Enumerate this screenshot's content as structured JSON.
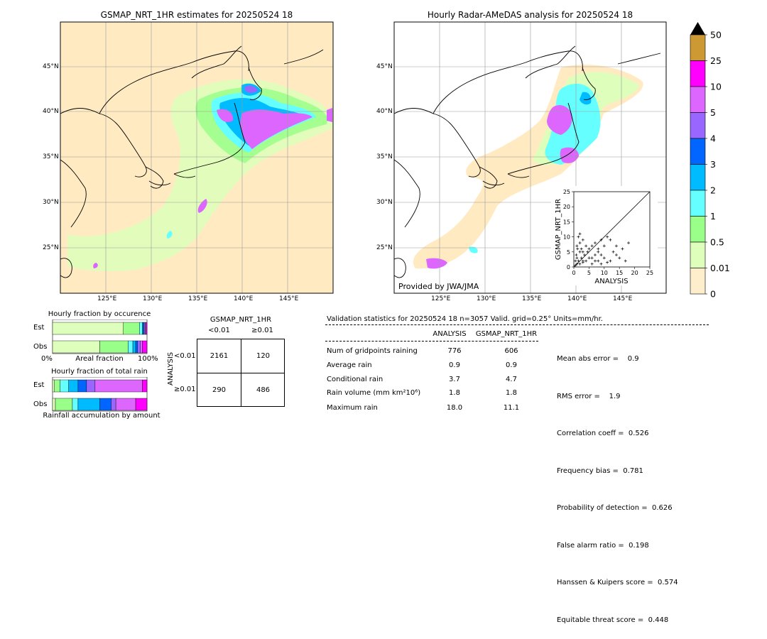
{
  "left_map": {
    "title": "GSMAP_NRT_1HR estimates for 20250524 18",
    "lat_labels": [
      "45°N",
      "40°N",
      "35°N",
      "30°N",
      "25°N"
    ],
    "lon_labels": [
      "125°E",
      "130°E",
      "135°E",
      "140°E",
      "145°E"
    ]
  },
  "right_map": {
    "title": "Hourly Radar-AMeDAS analysis for 20250524 18",
    "lat_labels": [
      "45°N",
      "40°N",
      "35°N",
      "30°N",
      "25°N"
    ],
    "lon_labels": [
      "125°E",
      "130°E",
      "135°E",
      "140°E",
      "145°E"
    ],
    "credit": "Provided by JWA/JMA"
  },
  "colorbar": {
    "labels": [
      "50",
      "25",
      "10",
      "5",
      "4",
      "3",
      "2",
      "1",
      "0.5",
      "0.01",
      "0"
    ],
    "colors": [
      "#cc9933",
      "#ff00ff",
      "#dd66ff",
      "#9966ff",
      "#0066ff",
      "#00bbff",
      "#66ffff",
      "#99ff88",
      "#ddffbb",
      "#ffeecc"
    ]
  },
  "occurrence": {
    "title": "Hourly fraction by occurence",
    "rows": [
      "Est",
      "Obs"
    ],
    "axis_left": "0%",
    "axis_mid": "Areal fraction",
    "axis_right": "100%"
  },
  "total_rain": {
    "title": "Hourly fraction of total rain",
    "rows": [
      "Est",
      "Obs"
    ],
    "footer": "Rainfall accumulation by amount"
  },
  "contingency": {
    "title": "GSMAP_NRT_1HR",
    "col_headers": [
      "<0.01",
      "≥0.01"
    ],
    "row_axis": "ANALYSIS",
    "row_headers": [
      "<0.01",
      "≥0.01"
    ],
    "cells": [
      [
        "2161",
        "120"
      ],
      [
        "290",
        "486"
      ]
    ]
  },
  "validation": {
    "header": "Validation statistics for 20250524 18  n=3057 Valid. grid=0.25° Units=mm/hr.",
    "col_analysis": "ANALYSIS",
    "col_gsmap": "GSMAP_NRT_1HR",
    "rows": [
      {
        "label": "Num of gridpoints raining",
        "analysis": "776",
        "gsmap": "606"
      },
      {
        "label": "Average rain",
        "analysis": "0.9",
        "gsmap": "0.9"
      },
      {
        "label": "Conditional rain",
        "analysis": "3.7",
        "gsmap": "4.7"
      },
      {
        "label": "Rain volume (mm km²10⁶)",
        "analysis": "1.8",
        "gsmap": "1.8"
      },
      {
        "label": "Maximum rain",
        "analysis": "18.0",
        "gsmap": "11.1"
      }
    ],
    "scores": [
      "Mean abs error =    0.9",
      "RMS error =    1.9",
      "Correlation coeff =  0.526",
      "Frequency bias =  0.781",
      "Probability of detection =  0.626",
      "False alarm ratio =  0.198",
      "Hanssen & Kuipers score =  0.574",
      "Equitable threat score =  0.448"
    ]
  },
  "chart_data": [
    {
      "type": "bar",
      "title": "Hourly fraction by occurence",
      "categories": [
        "Est",
        "Obs"
      ],
      "series": [
        {
          "values": [
            0.75,
            0.5
          ]
        },
        {
          "values": [
            0.17,
            0.3
          ]
        },
        {
          "values": [
            0.03,
            0.05
          ]
        },
        {
          "values": [
            0.01,
            0.03
          ]
        },
        {
          "values": [
            0.01,
            0.02
          ]
        },
        {
          "values": [
            0.01,
            0.03
          ]
        },
        {
          "values": [
            0.01,
            0.02
          ]
        },
        {
          "values": [
            0.01,
            0.05
          ]
        }
      ],
      "xlabel": "Areal fraction"
    },
    {
      "type": "bar",
      "title": "Hourly fraction of total rain",
      "categories": [
        "Est",
        "Obs"
      ],
      "series": [
        {
          "values": [
            0.02,
            0.03
          ]
        },
        {
          "values": [
            0.06,
            0.18
          ]
        },
        {
          "values": [
            0.09,
            0.06
          ]
        },
        {
          "values": [
            0.1,
            0.23
          ]
        },
        {
          "values": [
            0.09,
            0.12
          ]
        },
        {
          "values": [
            0.09,
            0.05
          ]
        },
        {
          "values": [
            0.5,
            0.21
          ]
        },
        {
          "values": [
            0.05,
            0.12
          ]
        }
      ],
      "xlabel": "Rainfall accumulation by amount"
    },
    {
      "type": "scatter",
      "xlabel": "ANALYSIS",
      "ylabel": "GSMAP_NRT_1HR",
      "xlim": [
        0,
        25
      ],
      "ylim": [
        0,
        25
      ],
      "x_ticks": [
        0,
        5,
        10,
        15,
        20,
        25
      ],
      "y_ticks": [
        0,
        5,
        10,
        15,
        20,
        25
      ],
      "points": [
        [
          0.5,
          0.5
        ],
        [
          1,
          1
        ],
        [
          1.5,
          2
        ],
        [
          2,
          1
        ],
        [
          2.5,
          3
        ],
        [
          3,
          1.5
        ],
        [
          0.8,
          4
        ],
        [
          1.2,
          6
        ],
        [
          2,
          8
        ],
        [
          1.5,
          10
        ],
        [
          3,
          5
        ],
        [
          4,
          2
        ],
        [
          5,
          3
        ],
        [
          6,
          1
        ],
        [
          7,
          4
        ],
        [
          8,
          2
        ],
        [
          9,
          1
        ],
        [
          10,
          3
        ],
        [
          11,
          1.5
        ],
        [
          12,
          2
        ],
        [
          13,
          5
        ],
        [
          14,
          4
        ],
        [
          15,
          3
        ],
        [
          16,
          6
        ],
        [
          17,
          2
        ],
        [
          18,
          8
        ],
        [
          6,
          7
        ],
        [
          8,
          6
        ],
        [
          10,
          7
        ],
        [
          12,
          9
        ],
        [
          3,
          9
        ],
        [
          2,
          11
        ],
        [
          4,
          7
        ],
        [
          5,
          6
        ],
        [
          7,
          8
        ],
        [
          9,
          9
        ],
        [
          11,
          10
        ],
        [
          1,
          3
        ],
        [
          2,
          5
        ],
        [
          3,
          2
        ],
        [
          0.5,
          2
        ],
        [
          1,
          7
        ],
        [
          2.5,
          6
        ],
        [
          3.5,
          4
        ],
        [
          4.5,
          5
        ],
        [
          6,
          3
        ],
        [
          7,
          2
        ],
        [
          8,
          5
        ],
        [
          9,
          4
        ],
        [
          14,
          7
        ]
      ]
    }
  ]
}
